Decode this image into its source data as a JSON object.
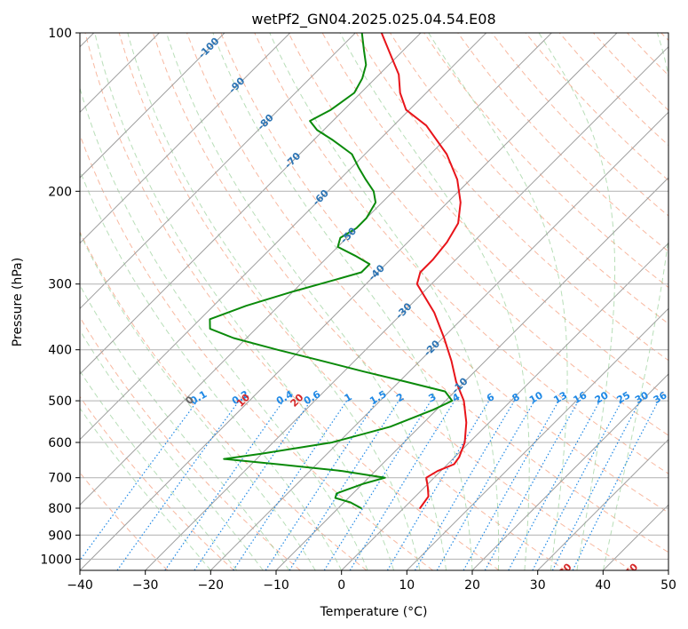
{
  "chart_data": {
    "type": "line",
    "diagram": "skew-t log-p",
    "title": "wetPf2_GN04.2025.025.04.54.E08",
    "xlabel": "Temperature (°C)",
    "ylabel": "Pressure (hPa)",
    "xlim": [
      -40,
      50
    ],
    "ylim": [
      1050,
      100
    ],
    "y_scale": "log",
    "grid": true,
    "x_ticks": [
      -40,
      -30,
      -20,
      -10,
      0,
      10,
      20,
      30,
      40,
      50
    ],
    "y_ticks": [
      100,
      200,
      300,
      400,
      500,
      600,
      700,
      800,
      900,
      1000
    ],
    "isotherm_labels": [
      -100,
      -90,
      -80,
      -70,
      -60,
      -50,
      -40,
      -30,
      -20,
      -10
    ],
    "mixing_ratio_labels": [
      "0.1",
      "0.2",
      "0.4",
      "0.6",
      "1",
      "1.5",
      "2",
      "3",
      "4",
      "6",
      "8",
      "10",
      "13",
      "16",
      "20",
      "25",
      "30",
      "36"
    ],
    "dry_adiabat_labels": [
      0,
      10,
      20,
      30,
      40
    ],
    "colors": {
      "temperature": "#e8141a",
      "dewpoint": "#0a8a0a",
      "isotherm_label": "#2c74b4",
      "mixing_ratio": "#1e88e5",
      "dry_adiabat_label": "#d62728",
      "dry_adiabat": "#f5a080",
      "moist_adiabat": "#88c888"
    },
    "series": [
      {
        "key": "temperature",
        "points": [
          {
            "p": 800,
            "t": 2.5
          },
          {
            "p": 760,
            "t": 2.0
          },
          {
            "p": 730,
            "t": 0.5
          },
          {
            "p": 700,
            "t": -1.2
          },
          {
            "p": 680,
            "t": -0.5
          },
          {
            "p": 660,
            "t": 1.0
          },
          {
            "p": 640,
            "t": 0.7
          },
          {
            "p": 600,
            "t": -0.7
          },
          {
            "p": 550,
            "t": -3.5
          },
          {
            "p": 500,
            "t": -7.2
          },
          {
            "p": 460,
            "t": -11.3
          },
          {
            "p": 420,
            "t": -15.2
          },
          {
            "p": 380,
            "t": -19.8
          },
          {
            "p": 340,
            "t": -25.2
          },
          {
            "p": 300,
            "t": -32.2
          },
          {
            "p": 285,
            "t": -33.5
          },
          {
            "p": 270,
            "t": -33.5
          },
          {
            "p": 250,
            "t": -34.0
          },
          {
            "p": 230,
            "t": -35.2
          },
          {
            "p": 210,
            "t": -38.0
          },
          {
            "p": 190,
            "t": -42.0
          },
          {
            "p": 170,
            "t": -47.5
          },
          {
            "p": 150,
            "t": -55.0
          },
          {
            "p": 140,
            "t": -60.5
          },
          {
            "p": 130,
            "t": -64.0
          },
          {
            "p": 120,
            "t": -67.0
          },
          {
            "p": 110,
            "t": -71.3
          },
          {
            "p": 100,
            "t": -76.0
          }
        ]
      },
      {
        "key": "dewpoint",
        "points": [
          {
            "p": 800,
            "t": -6.5
          },
          {
            "p": 780,
            "t": -9.0
          },
          {
            "p": 765,
            "t": -12.0
          },
          {
            "p": 750,
            "t": -12.5
          },
          {
            "p": 720,
            "t": -10.0
          },
          {
            "p": 700,
            "t": -7.5
          },
          {
            "p": 680,
            "t": -15.0
          },
          {
            "p": 660,
            "t": -26.0
          },
          {
            "p": 645,
            "t": -35.0
          },
          {
            "p": 630,
            "t": -30.0
          },
          {
            "p": 600,
            "t": -21.0
          },
          {
            "p": 560,
            "t": -14.5
          },
          {
            "p": 520,
            "t": -10.5
          },
          {
            "p": 500,
            "t": -9.0
          },
          {
            "p": 480,
            "t": -11.5
          },
          {
            "p": 460,
            "t": -19.0
          },
          {
            "p": 440,
            "t": -27.0
          },
          {
            "p": 420,
            "t": -35.0
          },
          {
            "p": 400,
            "t": -43.5
          },
          {
            "p": 380,
            "t": -52.0
          },
          {
            "p": 365,
            "t": -57.0
          },
          {
            "p": 350,
            "t": -58.5
          },
          {
            "p": 330,
            "t": -55.0
          },
          {
            "p": 310,
            "t": -50.0
          },
          {
            "p": 295,
            "t": -45.5
          },
          {
            "p": 285,
            "t": -42.5
          },
          {
            "p": 275,
            "t": -42.5
          },
          {
            "p": 265,
            "t": -46.0
          },
          {
            "p": 255,
            "t": -50.0
          },
          {
            "p": 245,
            "t": -51.0
          },
          {
            "p": 235,
            "t": -50.0
          },
          {
            "p": 225,
            "t": -50.0
          },
          {
            "p": 210,
            "t": -51.0
          },
          {
            "p": 200,
            "t": -53.0
          },
          {
            "p": 190,
            "t": -56.0
          },
          {
            "p": 180,
            "t": -59.0
          },
          {
            "p": 170,
            "t": -62.0
          },
          {
            "p": 160,
            "t": -67.0
          },
          {
            "p": 153,
            "t": -71.0
          },
          {
            "p": 147,
            "t": -73.5
          },
          {
            "p": 140,
            "t": -72.0
          },
          {
            "p": 130,
            "t": -71.0
          },
          {
            "p": 122,
            "t": -72.0
          },
          {
            "p": 115,
            "t": -73.5
          },
          {
            "p": 108,
            "t": -76.0
          },
          {
            "p": 100,
            "t": -79.0
          }
        ]
      }
    ]
  }
}
